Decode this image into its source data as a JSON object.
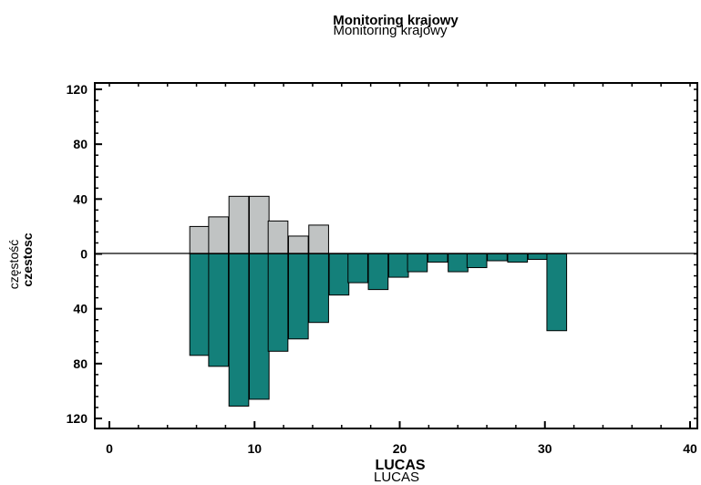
{
  "chart_data": {
    "type": "bar",
    "title": "Monitoring krajowy",
    "xlabel": "LUCAS",
    "ylabel": "częstość",
    "ylabel_bold": "czestosc",
    "xlim": [
      0,
      40
    ],
    "ylim": [
      -120,
      120
    ],
    "xticks": [
      "0",
      "10",
      "20",
      "30",
      "40"
    ],
    "yticks": [
      "120",
      "80",
      "40",
      "0",
      "40",
      "80",
      "120"
    ],
    "bin_width": 2,
    "grid": false,
    "series": [
      {
        "name": "upper",
        "color": "#c0c3c3",
        "bins": [
          {
            "x0": 5.5,
            "value": 20
          },
          {
            "x0": 6.8,
            "value": 27
          },
          {
            "x0": 8.2,
            "value": 42
          },
          {
            "x0": 9.6,
            "value": 42
          },
          {
            "x0": 10.9,
            "value": 24
          },
          {
            "x0": 12.3,
            "value": 13
          },
          {
            "x0": 13.7,
            "value": 21
          }
        ]
      },
      {
        "name": "lower",
        "color": "#14807a",
        "bins": [
          {
            "x0": 5.5,
            "value": -74
          },
          {
            "x0": 6.8,
            "value": -82
          },
          {
            "x0": 8.2,
            "value": -111
          },
          {
            "x0": 9.6,
            "value": -106
          },
          {
            "x0": 10.9,
            "value": -71
          },
          {
            "x0": 12.3,
            "value": -62
          },
          {
            "x0": 13.7,
            "value": -50
          },
          {
            "x0": 15.1,
            "value": -30
          },
          {
            "x0": 16.4,
            "value": -21
          },
          {
            "x0": 17.8,
            "value": -26
          },
          {
            "x0": 19.2,
            "value": -17
          },
          {
            "x0": 20.5,
            "value": -13
          },
          {
            "x0": 21.9,
            "value": -6
          },
          {
            "x0": 23.3,
            "value": -13
          },
          {
            "x0": 24.6,
            "value": -10
          },
          {
            "x0": 26.0,
            "value": -5
          },
          {
            "x0": 27.4,
            "value": -6
          },
          {
            "x0": 28.8,
            "value": -4
          },
          {
            "x0": 30.1,
            "value": -56
          }
        ]
      }
    ]
  }
}
